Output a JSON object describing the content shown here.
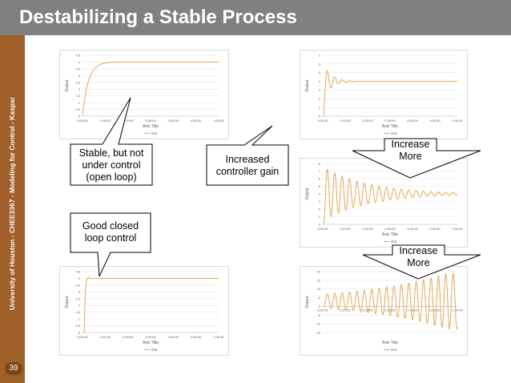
{
  "slide": {
    "title": "Destabilizing a Stable Process",
    "sidebar_text": "University of Houston - CHEE3367 - Modeling for Control - Kaspar",
    "page_number": "39"
  },
  "colors": {
    "title_bar": "#808080",
    "sidebar": "#A0602A",
    "series": "#E3A046"
  },
  "callouts": {
    "stable": [
      "Stable, but not",
      "under control",
      "(open loop)"
    ],
    "gain": [
      "Increased",
      "controller gain"
    ],
    "more1": [
      "Increase",
      "More"
    ],
    "closed": [
      "Good closed",
      "loop control"
    ],
    "more2": [
      "Increase",
      "More"
    ]
  },
  "chart_data": [
    {
      "type": "line",
      "ylabel": "Output",
      "xlabel": "Axis Title",
      "legend": "Out",
      "legend_position": "bottom",
      "ylim": [
        0,
        4.5
      ],
      "yticks": [
        "0",
        "0.5",
        "1",
        "1.5",
        "2",
        "2.5",
        "3",
        "3.5",
        "4",
        "4.5"
      ],
      "xlim": [
        0,
        60
      ],
      "xticks": [
        "0:00:00",
        "0:10:00",
        "0:20:00",
        "0:30:00",
        "0:40:00",
        "0:50:00",
        "1:00:00"
      ],
      "model": {
        "kind": "first_order",
        "final": 4,
        "tau": 2.5
      }
    },
    {
      "type": "line",
      "ylabel": "Output",
      "xlabel": "Axis Title",
      "legend": "Out",
      "legend_position": "bottom",
      "ylim": [
        0,
        7
      ],
      "yticks": [
        "0",
        "1",
        "2",
        "3",
        "4",
        "5",
        "6",
        "7"
      ],
      "xlim": [
        0,
        60
      ],
      "xticks": [
        "0:00:00",
        "0:10:00",
        "0:20:00",
        "0:30:00",
        "0:40:00",
        "0:50:00",
        "1:00:00"
      ],
      "model": {
        "kind": "oscillation",
        "final": 4,
        "amplitude": 2,
        "period": 3.3,
        "decay": 3.5,
        "delay": 0.4
      }
    },
    {
      "type": "line",
      "ylabel": "Output",
      "xlabel": "Axis Title",
      "legend": "Out",
      "legend_position": "bottom",
      "ylim": [
        0,
        8
      ],
      "yticks": [
        "0",
        "1",
        "2",
        "3",
        "4",
        "5",
        "6",
        "7",
        "8"
      ],
      "xlim": [
        0,
        60
      ],
      "xticks": [
        "0:00:00",
        "0:10:00",
        "0:20:00",
        "0:30:00",
        "0:40:00",
        "0:50:00",
        "1:00:00"
      ],
      "model": {
        "kind": "oscillation",
        "final": 4,
        "amplitude": 3.5,
        "period": 3.3,
        "decay": 20,
        "delay": 0.4
      }
    },
    {
      "type": "line",
      "ylabel": "Output",
      "xlabel": "Axis Title",
      "legend": "Out",
      "legend_position": "bottom",
      "ylim": [
        0,
        4.5
      ],
      "yticks": [
        "0",
        "0.5",
        "1",
        "1.5",
        "2",
        "2.5",
        "3",
        "3.5",
        "4",
        "4.5"
      ],
      "xlim": [
        0,
        60
      ],
      "xticks": [
        "0:00:00",
        "0:10:00",
        "0:20:00",
        "0:30:00",
        "0:40:00",
        "0:50:00",
        "1:00:00"
      ],
      "model": {
        "kind": "overshoot",
        "final": 4,
        "amplitude": 0.3,
        "period": 4,
        "decay": 1.5,
        "delay": 0.8
      }
    },
    {
      "type": "line",
      "ylabel": "Output",
      "xlabel": "Axis Title",
      "legend": "Out",
      "legend_position": "bottom",
      "ylim": [
        -15,
        20
      ],
      "yticks": [
        "-15",
        "-10",
        "-5",
        "0",
        "5",
        "10",
        "15",
        "20"
      ],
      "xlim": [
        0,
        60
      ],
      "xticks": [
        "0:00:00",
        "0:10:00",
        "0:20:00",
        "0:30:00",
        "0:40:00",
        "0:50:00",
        "1:00:00"
      ],
      "model": {
        "kind": "growing",
        "final": 3,
        "amplitude": 4,
        "period": 3.3,
        "growth": 0.025,
        "max_amp": 16,
        "delay": 0.4
      }
    }
  ]
}
